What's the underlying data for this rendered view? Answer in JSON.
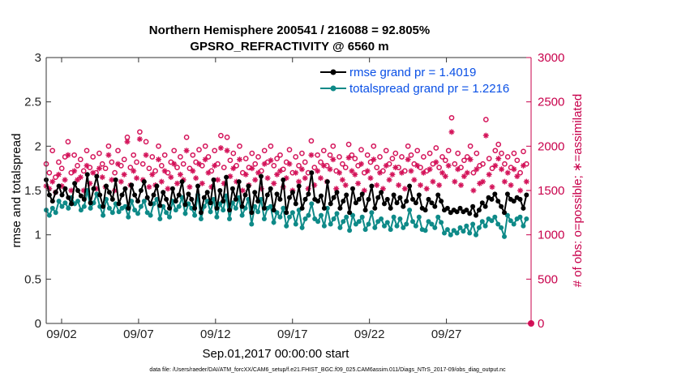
{
  "chart_data": {
    "type": "line",
    "title": "Northern Hemisphere 200541 / 216088 = 92.805%",
    "subtitle": "GPSRO_REFRACTIVITY @ 6560 m",
    "xlabel": "Sep.01,2017 00:00:00 start",
    "ylabel_left": "rmse and totalspread",
    "ylabel_right": "# of obs: o=possible; ∗=assimilated",
    "footer": "data file: /Users/raeder/DAI/ATM_forcXX/CAM6_setup/f.e21.FHIST_BGC.f09_025.CAM6assim.011/Diags_NTrS_2017-09/obs_diag_output.nc",
    "xlim_days": [
      0,
      31.5
    ],
    "ylim_left": [
      0,
      3
    ],
    "ylim_right": [
      0,
      3000
    ],
    "x_ticks": [
      {
        "day": 1,
        "label": "09/02"
      },
      {
        "day": 6,
        "label": "09/07"
      },
      {
        "day": 11,
        "label": "09/12"
      },
      {
        "day": 16,
        "label": "09/17"
      },
      {
        "day": 21,
        "label": "09/22"
      },
      {
        "day": 26,
        "label": "09/27"
      }
    ],
    "y_ticks_left": [
      "0",
      "0.5",
      "1",
      "1.5",
      "2",
      "2.5",
      "3"
    ],
    "y_ticks_right": [
      "0",
      "500",
      "1000",
      "1500",
      "2000",
      "2500",
      "3000"
    ],
    "colors": {
      "rmse": "#000000",
      "spread": "#0e8a88",
      "obs": "#d4145a",
      "right_axis": "#c8004b",
      "legend_text": "#0a50e6"
    },
    "series": [
      {
        "name": "rmse grand pr = 1.4019",
        "axis": "left",
        "values": [
          1.62,
          1.45,
          1.38,
          1.48,
          1.55,
          1.45,
          1.52,
          1.42,
          1.35,
          1.58,
          1.5,
          1.44,
          1.4,
          1.68,
          1.36,
          1.52,
          1.66,
          1.45,
          1.32,
          1.55,
          1.48,
          1.4,
          1.62,
          1.35,
          1.45,
          1.52,
          1.3,
          1.56,
          1.45,
          1.38,
          1.5,
          1.6,
          1.42,
          1.35,
          1.45,
          1.55,
          1.33,
          1.48,
          1.4,
          1.3,
          1.52,
          1.38,
          1.45,
          1.6,
          1.34,
          1.46,
          1.4,
          1.3,
          1.55,
          1.25,
          1.42,
          1.48,
          1.36,
          1.62,
          1.3,
          1.5,
          1.38,
          1.65,
          1.28,
          1.52,
          1.4,
          1.6,
          1.32,
          1.45,
          1.55,
          1.25,
          1.48,
          1.38,
          1.66,
          1.3,
          1.45,
          1.52,
          1.28,
          1.46,
          1.4,
          1.62,
          1.25,
          1.42,
          1.48,
          1.35,
          1.55,
          1.3,
          1.4,
          1.46,
          1.7,
          1.4,
          1.38,
          1.44,
          1.3,
          1.6,
          1.35,
          1.42,
          1.48,
          1.3,
          1.38,
          1.45,
          1.25,
          1.52,
          1.36,
          1.4,
          1.46,
          1.28,
          1.4,
          1.55,
          1.3,
          1.42,
          1.48,
          1.35,
          1.4,
          1.3,
          1.45,
          1.36,
          1.42,
          1.32,
          1.38,
          1.55,
          1.4,
          1.36,
          1.45,
          1.3,
          1.28,
          1.4,
          1.36,
          1.32,
          1.45,
          1.38,
          1.28,
          1.3,
          1.25,
          1.28,
          1.26,
          1.3,
          1.26,
          1.28,
          1.24,
          1.32,
          1.22,
          1.28,
          1.36,
          1.32,
          1.42,
          1.4,
          1.46,
          1.38,
          1.32,
          1.25,
          1.46,
          1.4,
          1.38,
          1.42,
          1.4,
          1.3,
          1.45
        ]
      },
      {
        "name": "totalspread grand pr = 1.2216",
        "axis": "left",
        "values": [
          1.28,
          1.22,
          1.3,
          1.25,
          1.38,
          1.32,
          1.36,
          1.3,
          1.42,
          1.35,
          1.38,
          1.28,
          1.32,
          1.5,
          1.3,
          1.36,
          1.46,
          1.32,
          1.22,
          1.4,
          1.3,
          1.25,
          1.35,
          1.26,
          1.3,
          1.32,
          1.2,
          1.38,
          1.28,
          1.24,
          1.32,
          1.38,
          1.25,
          1.22,
          1.35,
          1.4,
          1.18,
          1.32,
          1.25,
          1.2,
          1.38,
          1.28,
          1.32,
          1.42,
          1.24,
          1.35,
          1.3,
          1.22,
          1.45,
          1.18,
          1.32,
          1.38,
          1.26,
          1.4,
          1.2,
          1.35,
          1.28,
          1.44,
          1.18,
          1.36,
          1.3,
          1.42,
          1.22,
          1.3,
          1.4,
          1.12,
          1.32,
          1.26,
          1.4,
          1.18,
          1.3,
          1.32,
          1.14,
          1.25,
          1.2,
          1.3,
          1.1,
          1.2,
          1.25,
          1.12,
          1.28,
          1.08,
          1.18,
          1.22,
          1.35,
          1.18,
          1.15,
          1.22,
          1.1,
          1.3,
          1.12,
          1.18,
          1.24,
          1.08,
          1.15,
          1.2,
          1.05,
          1.22,
          1.12,
          1.15,
          1.2,
          1.06,
          1.12,
          1.25,
          1.08,
          1.15,
          1.18,
          1.1,
          1.14,
          1.06,
          1.2,
          1.1,
          1.18,
          1.08,
          1.12,
          1.28,
          1.15,
          1.1,
          1.2,
          1.06,
          1.05,
          1.15,
          1.12,
          1.08,
          1.2,
          1.14,
          1.02,
          1.06,
          1.0,
          1.05,
          1.02,
          1.08,
          1.04,
          1.1,
          1.02,
          1.12,
          1.0,
          1.08,
          1.15,
          1.1,
          1.18,
          1.16,
          1.2,
          1.12,
          1.08,
          0.98,
          1.22,
          1.16,
          1.12,
          1.18,
          1.2,
          1.1,
          1.18
        ]
      },
      {
        "name": "possible",
        "axis": "right",
        "values": [
          1800,
          1700,
          1950,
          1650,
          1820,
          1750,
          1880,
          2050,
          1700,
          1900,
          1780,
          1850,
          1720,
          1950,
          1760,
          1880,
          1700,
          1920,
          1800,
          1750,
          2000,
          1820,
          1700,
          1950,
          1780,
          1850,
          2100,
          1760,
          1900,
          1820,
          2160,
          1800,
          2050,
          1750,
          1880,
          1720,
          2000,
          1780,
          1900,
          1700,
          1820,
          1950,
          1760,
          1880,
          1800,
          2100,
          1750,
          1900,
          1820,
          1960,
          1780,
          2000,
          1880,
          1720,
          1950,
          1800,
          2120,
          1760,
          2100,
          1840,
          1920,
          1780,
          2000,
          1700,
          1860,
          1760,
          1920,
          1800,
          1880,
          1720,
          1950,
          1820,
          2000,
          1780,
          1860,
          1900,
          1740,
          1820,
          1960,
          1700,
          1880,
          1780,
          1920,
          1820,
          1700,
          2060,
          1760,
          1900,
          1820,
          1950,
          1780,
          1900,
          2000,
          1720,
          1880,
          1800,
          1760,
          2020,
          1900,
          1860,
          1780,
          1960,
          1700,
          1900,
          1820,
          2000,
          1760,
          1880,
          1720,
          1950,
          1800,
          1860,
          1920,
          1760,
          1880,
          1720,
          2000,
          1900,
          1800,
          1950,
          1760,
          1880,
          1720,
          1920,
          1800,
          1980,
          1760,
          1880,
          1840,
          1950,
          2320,
          1800,
          1920,
          1760,
          1840,
          1880,
          2000,
          1700,
          1920,
          1780,
          1800,
          2300,
          1860,
          1750,
          1950,
          2020,
          1920,
          1800,
          1880,
          1760,
          1920,
          1840,
          1700,
          1940,
          1800
        ]
      },
      {
        "name": "assimilated",
        "axis": "right",
        "values": [
          1550,
          1520,
          1600,
          1480,
          1680,
          1550,
          1620,
          1900,
          1500,
          1720,
          1620,
          1650,
          1500,
          1780,
          1580,
          1700,
          1520,
          1750,
          1650,
          1540,
          1900,
          1620,
          1500,
          1800,
          1600,
          1680,
          2050,
          1560,
          1720,
          1640,
          2080,
          1620,
          1900,
          1540,
          1680,
          1560,
          1850,
          1600,
          1720,
          1520,
          1650,
          1800,
          1580,
          1680,
          1620,
          1950,
          1540,
          1720,
          1640,
          1800,
          1580,
          1850,
          1700,
          1540,
          1780,
          1620,
          1980,
          1580,
          1950,
          1660,
          1750,
          1600,
          1850,
          1500,
          1680,
          1560,
          1750,
          1620,
          1700,
          1520,
          1800,
          1640,
          1840,
          1580,
          1680,
          1720,
          1540,
          1640,
          1800,
          1500,
          1700,
          1600,
          1740,
          1640,
          1520,
          1900,
          1560,
          1720,
          1640,
          1780,
          1600,
          1740,
          1850,
          1520,
          1700,
          1620,
          1560,
          1870,
          1720,
          1680,
          1580,
          1800,
          1500,
          1720,
          1640,
          1850,
          1560,
          1700,
          1520,
          1780,
          1620,
          1680,
          1760,
          1560,
          1700,
          1520,
          1850,
          1720,
          1620,
          1780,
          1560,
          1700,
          1520,
          1740,
          1600,
          1820,
          1560,
          1700,
          1660,
          1780,
          2160,
          1600,
          1740,
          1560,
          1660,
          1700,
          1850,
          1500,
          1740,
          1580,
          1600,
          2120,
          1680,
          1540,
          1780,
          1860,
          1740,
          1600,
          1700,
          1560,
          1740,
          1660,
          1500,
          1780,
          1600
        ]
      }
    ],
    "legend": [
      {
        "label": "rmse grand pr = 1.4019",
        "series": "rmse"
      },
      {
        "label": "totalspread grand pr = 1.2216",
        "series": "spread"
      }
    ],
    "legend_position": "top-right"
  }
}
